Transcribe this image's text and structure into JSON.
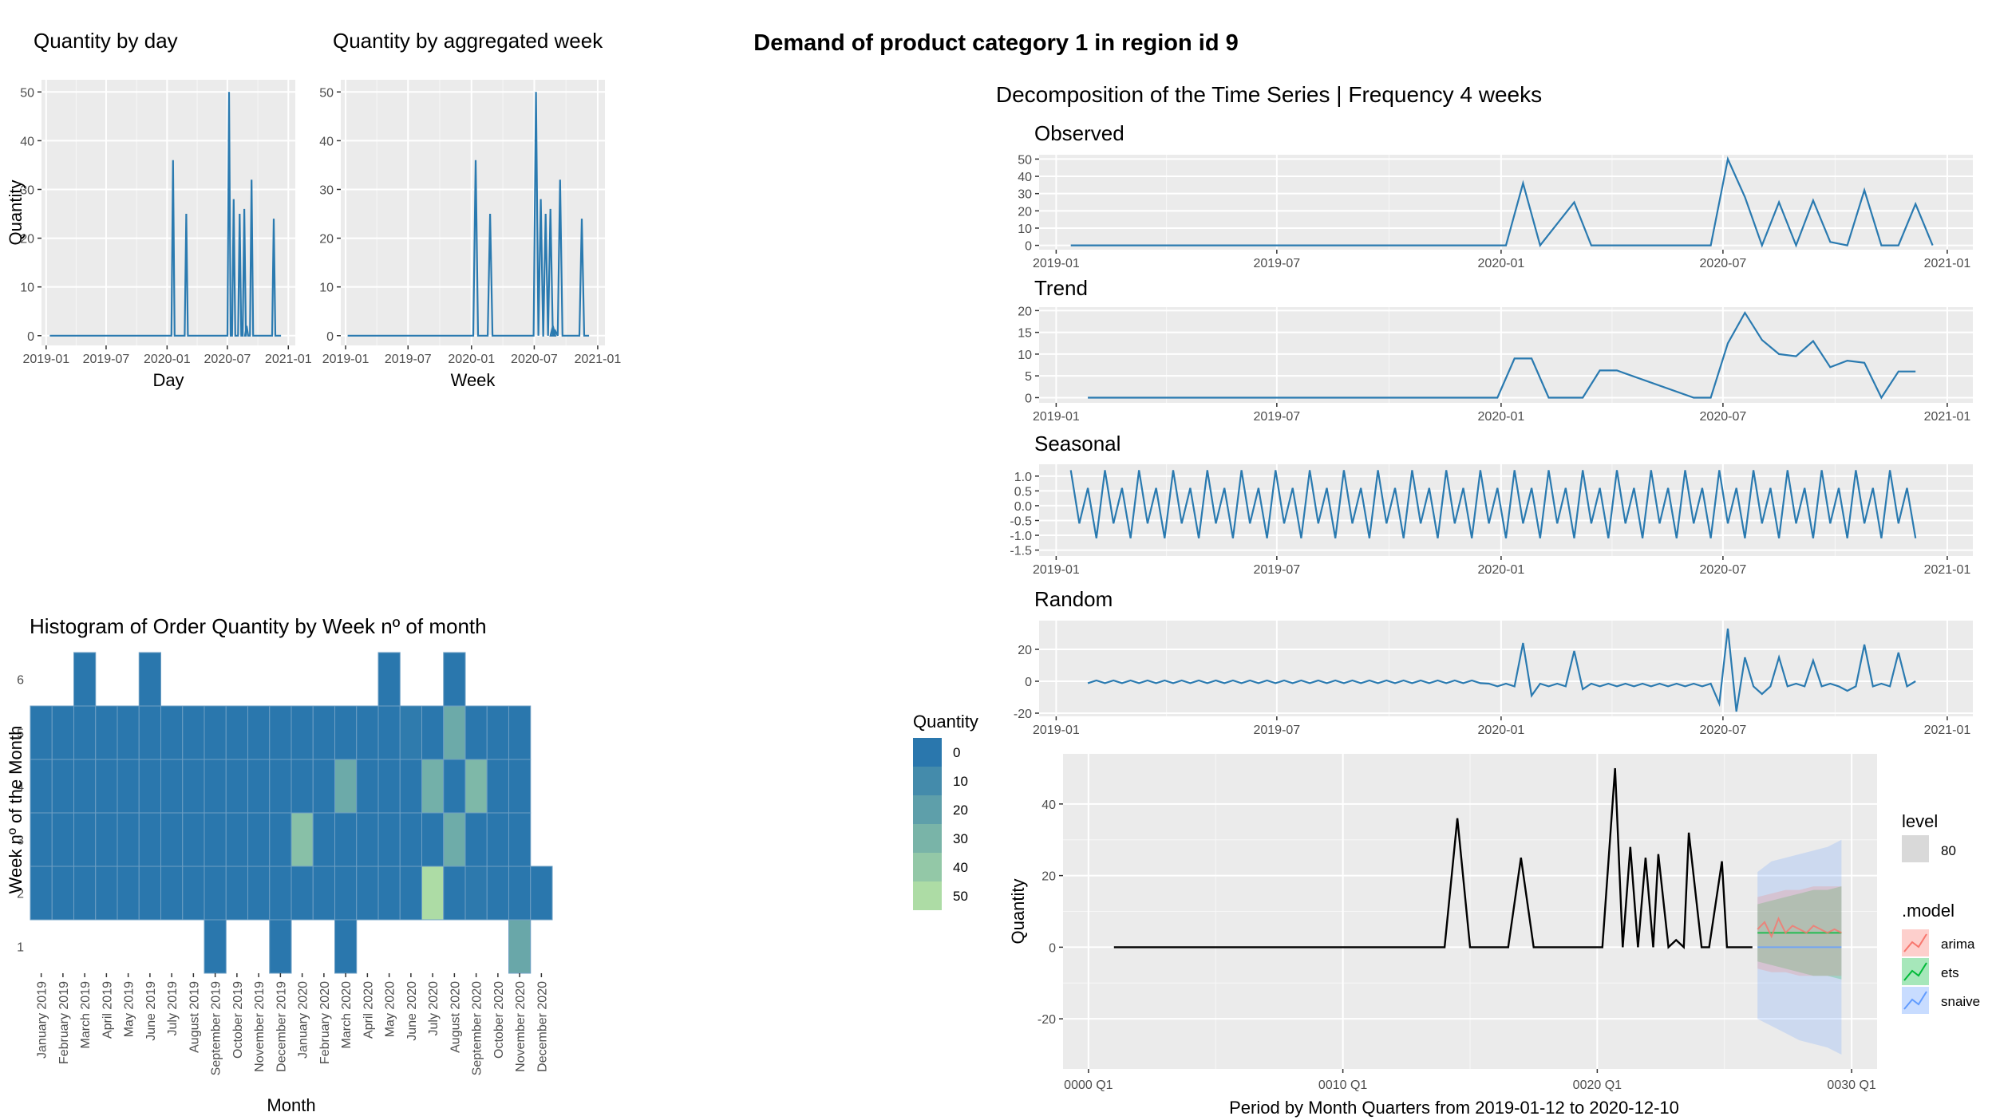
{
  "title": "Demand of product category 1 in region id 9",
  "colors": {
    "line": "#2a7ab0",
    "panel_bg": "#ebebeb",
    "grid": "#ffffff",
    "heat_low": "#2a77ad",
    "heat_high": "#addca5",
    "arima": "#f8766d",
    "ets": "#00ba38",
    "snaive": "#619cff"
  },
  "chart_data": [
    {
      "type": "line",
      "title": "Quantity by day",
      "xlabel": "Day",
      "ylabel": "Quantity",
      "xticks": [
        "2019-01",
        "2019-07",
        "2020-01",
        "2020-07",
        "2021-01"
      ],
      "yticks": [
        0,
        10,
        20,
        30,
        40,
        50
      ],
      "ylim": [
        -2,
        52.5
      ],
      "series": [
        {
          "x": [
            "2019-01-12",
            "2020-01-19",
            "2020-02-28",
            "2020-07-06",
            "2020-07-20",
            "2020-08-07",
            "2020-08-21",
            "2020-08-28",
            "2020-09-12",
            "2020-11-18",
            "2020-12-10"
          ],
          "y": [
            0,
            36,
            25,
            50,
            28,
            25,
            26,
            2,
            32,
            24,
            0
          ]
        }
      ]
    },
    {
      "type": "line",
      "title": "Quantity by aggregated week",
      "xlabel": "Week",
      "ylabel": "",
      "xticks": [
        "2019-01",
        "2019-07",
        "2020-01",
        "2020-07",
        "2021-01"
      ],
      "yticks": [
        0,
        10,
        20,
        30,
        40,
        50
      ],
      "ylim": [
        -2,
        52.5
      ],
      "series": [
        {
          "x": [
            "2019-01-07",
            "2020-01-13",
            "2020-02-24",
            "2020-07-06",
            "2020-07-20",
            "2020-08-03",
            "2020-08-17",
            "2020-08-24",
            "2020-08-31",
            "2020-09-14",
            "2020-11-16",
            "2020-12-07"
          ],
          "y": [
            0,
            36,
            25,
            50,
            28,
            25,
            26,
            2,
            1,
            32,
            24,
            0
          ]
        }
      ]
    },
    {
      "type": "heatmap",
      "title": "Histogram of Order Quantity by Week nº of month",
      "xlabel": "Month",
      "ylabel": "Week nº of the Month",
      "categories": [
        "January 2019",
        "February 2019",
        "March 2019",
        "April 2019",
        "May 2019",
        "June 2019",
        "July 2019",
        "August 2019",
        "September 2019",
        "October 2019",
        "November 2019",
        "December 2019",
        "January 2020",
        "February 2020",
        "March 2020",
        "April 2020",
        "May 2020",
        "June 2020",
        "July 2020",
        "August 2020",
        "September 2020",
        "October 2020",
        "November 2020",
        "December 2020"
      ],
      "rows": [
        "1",
        "2",
        "3",
        "4",
        "5",
        "6"
      ],
      "legend_title": "Quantity",
      "legend_ticks": [
        0,
        10,
        20,
        30,
        40,
        50
      ],
      "cells": [
        [
          null,
          0,
          0,
          0,
          0,
          null
        ],
        [
          null,
          0,
          0,
          0,
          0,
          null
        ],
        [
          null,
          0,
          0,
          0,
          0,
          0
        ],
        [
          null,
          0,
          0,
          0,
          0,
          null
        ],
        [
          null,
          0,
          0,
          0,
          0,
          null
        ],
        [
          null,
          0,
          0,
          0,
          0,
          0
        ],
        [
          null,
          0,
          0,
          0,
          0,
          null
        ],
        [
          null,
          0,
          0,
          0,
          0,
          null
        ],
        [
          0,
          0,
          0,
          0,
          0,
          null
        ],
        [
          null,
          0,
          0,
          0,
          0,
          null
        ],
        [
          null,
          0,
          0,
          0,
          0,
          null
        ],
        [
          0,
          0,
          0,
          0,
          0,
          null
        ],
        [
          null,
          0,
          36,
          0,
          0,
          null
        ],
        [
          null,
          0,
          0,
          0,
          0,
          null
        ],
        [
          0,
          0,
          0,
          25,
          0,
          null
        ],
        [
          null,
          0,
          0,
          0,
          0,
          null
        ],
        [
          null,
          0,
          0,
          0,
          0,
          0
        ],
        [
          null,
          0,
          0,
          0,
          2,
          null
        ],
        [
          null,
          50,
          0,
          28,
          0,
          null
        ],
        [
          null,
          0,
          26,
          0,
          25,
          0
        ],
        [
          null,
          1,
          0,
          32,
          0,
          null
        ],
        [
          null,
          0,
          0,
          0,
          0,
          null
        ],
        [
          24,
          0,
          0,
          0,
          0,
          null
        ],
        [
          null,
          0,
          null,
          null,
          null,
          null
        ]
      ]
    },
    {
      "type": "line",
      "title": "Decomposition of the Time Series | Frequency 4 weeks",
      "xticks": [
        "2019-01",
        "2019-07",
        "2020-01",
        "2020-07",
        "2021-01"
      ],
      "panels": [
        {
          "name": "Observed",
          "yticks": [
            0,
            10,
            20,
            30,
            40,
            50
          ],
          "ylim": [
            -2.5,
            52.5
          ],
          "x": [
            "2019-01-13",
            "2020-01-05",
            "2020-01-19",
            "2020-02-02",
            "2020-03-01",
            "2020-03-15",
            "2020-06-21",
            "2020-07-05",
            "2020-07-19",
            "2020-08-02",
            "2020-08-16",
            "2020-08-30",
            "2020-09-13",
            "2020-09-27",
            "2020-10-11",
            "2020-10-25",
            "2020-11-08",
            "2020-11-22",
            "2020-12-06",
            "2020-12-20"
          ],
          "y": [
            0,
            0,
            36,
            0,
            25,
            0,
            0,
            50,
            28,
            0,
            25,
            0,
            26,
            2,
            0,
            32,
            0,
            0,
            24,
            0
          ]
        },
        {
          "name": "Trend",
          "yticks": [
            0,
            5,
            10,
            15,
            20
          ],
          "ylim": [
            -1.2,
            20.8
          ],
          "x": [
            "2019-01-27",
            "2019-12-29",
            "2020-01-12",
            "2020-01-26",
            "2020-02-09",
            "2020-03-08",
            "2020-03-22",
            "2020-04-05",
            "2020-06-07",
            "2020-06-21",
            "2020-07-05",
            "2020-07-19",
            "2020-08-02",
            "2020-08-16",
            "2020-08-30",
            "2020-09-13",
            "2020-09-27",
            "2020-10-11",
            "2020-10-25",
            "2020-11-08",
            "2020-11-22",
            "2020-12-06"
          ],
          "y": [
            0,
            0,
            9,
            9,
            0,
            0,
            6.25,
            6.25,
            0,
            0,
            12.5,
            19.5,
            13.25,
            10,
            9.5,
            13,
            7,
            8.5,
            8,
            0,
            6,
            6
          ]
        },
        {
          "name": "Seasonal",
          "yticks": [
            "1.0",
            "0.5",
            "0.0",
            "-0.5",
            "-1.0",
            "-1.5"
          ],
          "ylim": [
            -1.7,
            1.4
          ],
          "pattern": [
            1.2,
            -0.6,
            0.6,
            -1.1
          ]
        },
        {
          "name": "Random",
          "yticks": [
            20,
            0,
            -20
          ],
          "ylim": [
            -22,
            38
          ]
        }
      ]
    },
    {
      "type": "line",
      "title": "",
      "xlabel": "Period by Month Quarters from 2019-01-12 to 2020-12-10",
      "ylabel": "Quantity",
      "xticks": [
        "0000 Q1",
        "0010 Q1",
        "0020 Q1",
        "0030 Q1"
      ],
      "yticks": [
        40,
        20,
        0,
        -20
      ],
      "ylim": [
        -34,
        54
      ],
      "series": [
        {
          "name": "actual",
          "x": [
            1,
            14,
            14.5,
            15,
            16.5,
            17,
            17.5,
            20.2,
            20.7,
            21,
            21.3,
            21.6,
            21.9,
            22.2,
            22.4,
            22.8,
            23.1,
            23.4,
            23.6,
            24.1,
            24.4,
            24.9,
            25.1,
            25.3,
            26.1
          ],
          "y": [
            0,
            0,
            36,
            0,
            0,
            25,
            0,
            0,
            50,
            0,
            28,
            0,
            25,
            0,
            26,
            0,
            2,
            0,
            32,
            0,
            0,
            24,
            0,
            0,
            0
          ]
        }
      ],
      "forecast": {
        "start": 26.3,
        "end": 29.6,
        "arima": [
          5,
          7,
          3,
          8,
          4,
          6,
          5,
          4,
          6,
          5,
          4,
          5,
          4
        ],
        "ets": [
          4,
          4,
          4,
          4,
          4,
          4,
          4,
          4,
          4,
          4,
          4,
          4,
          4
        ],
        "snaive": [
          0,
          0,
          0,
          0,
          0,
          0,
          0,
          0,
          0,
          0,
          0,
          0,
          0
        ]
      },
      "legend": {
        "level_title": "level",
        "level_value": "80",
        "model_title": ".model",
        "models": [
          "arima",
          "ets",
          "snaive"
        ]
      }
    }
  ]
}
